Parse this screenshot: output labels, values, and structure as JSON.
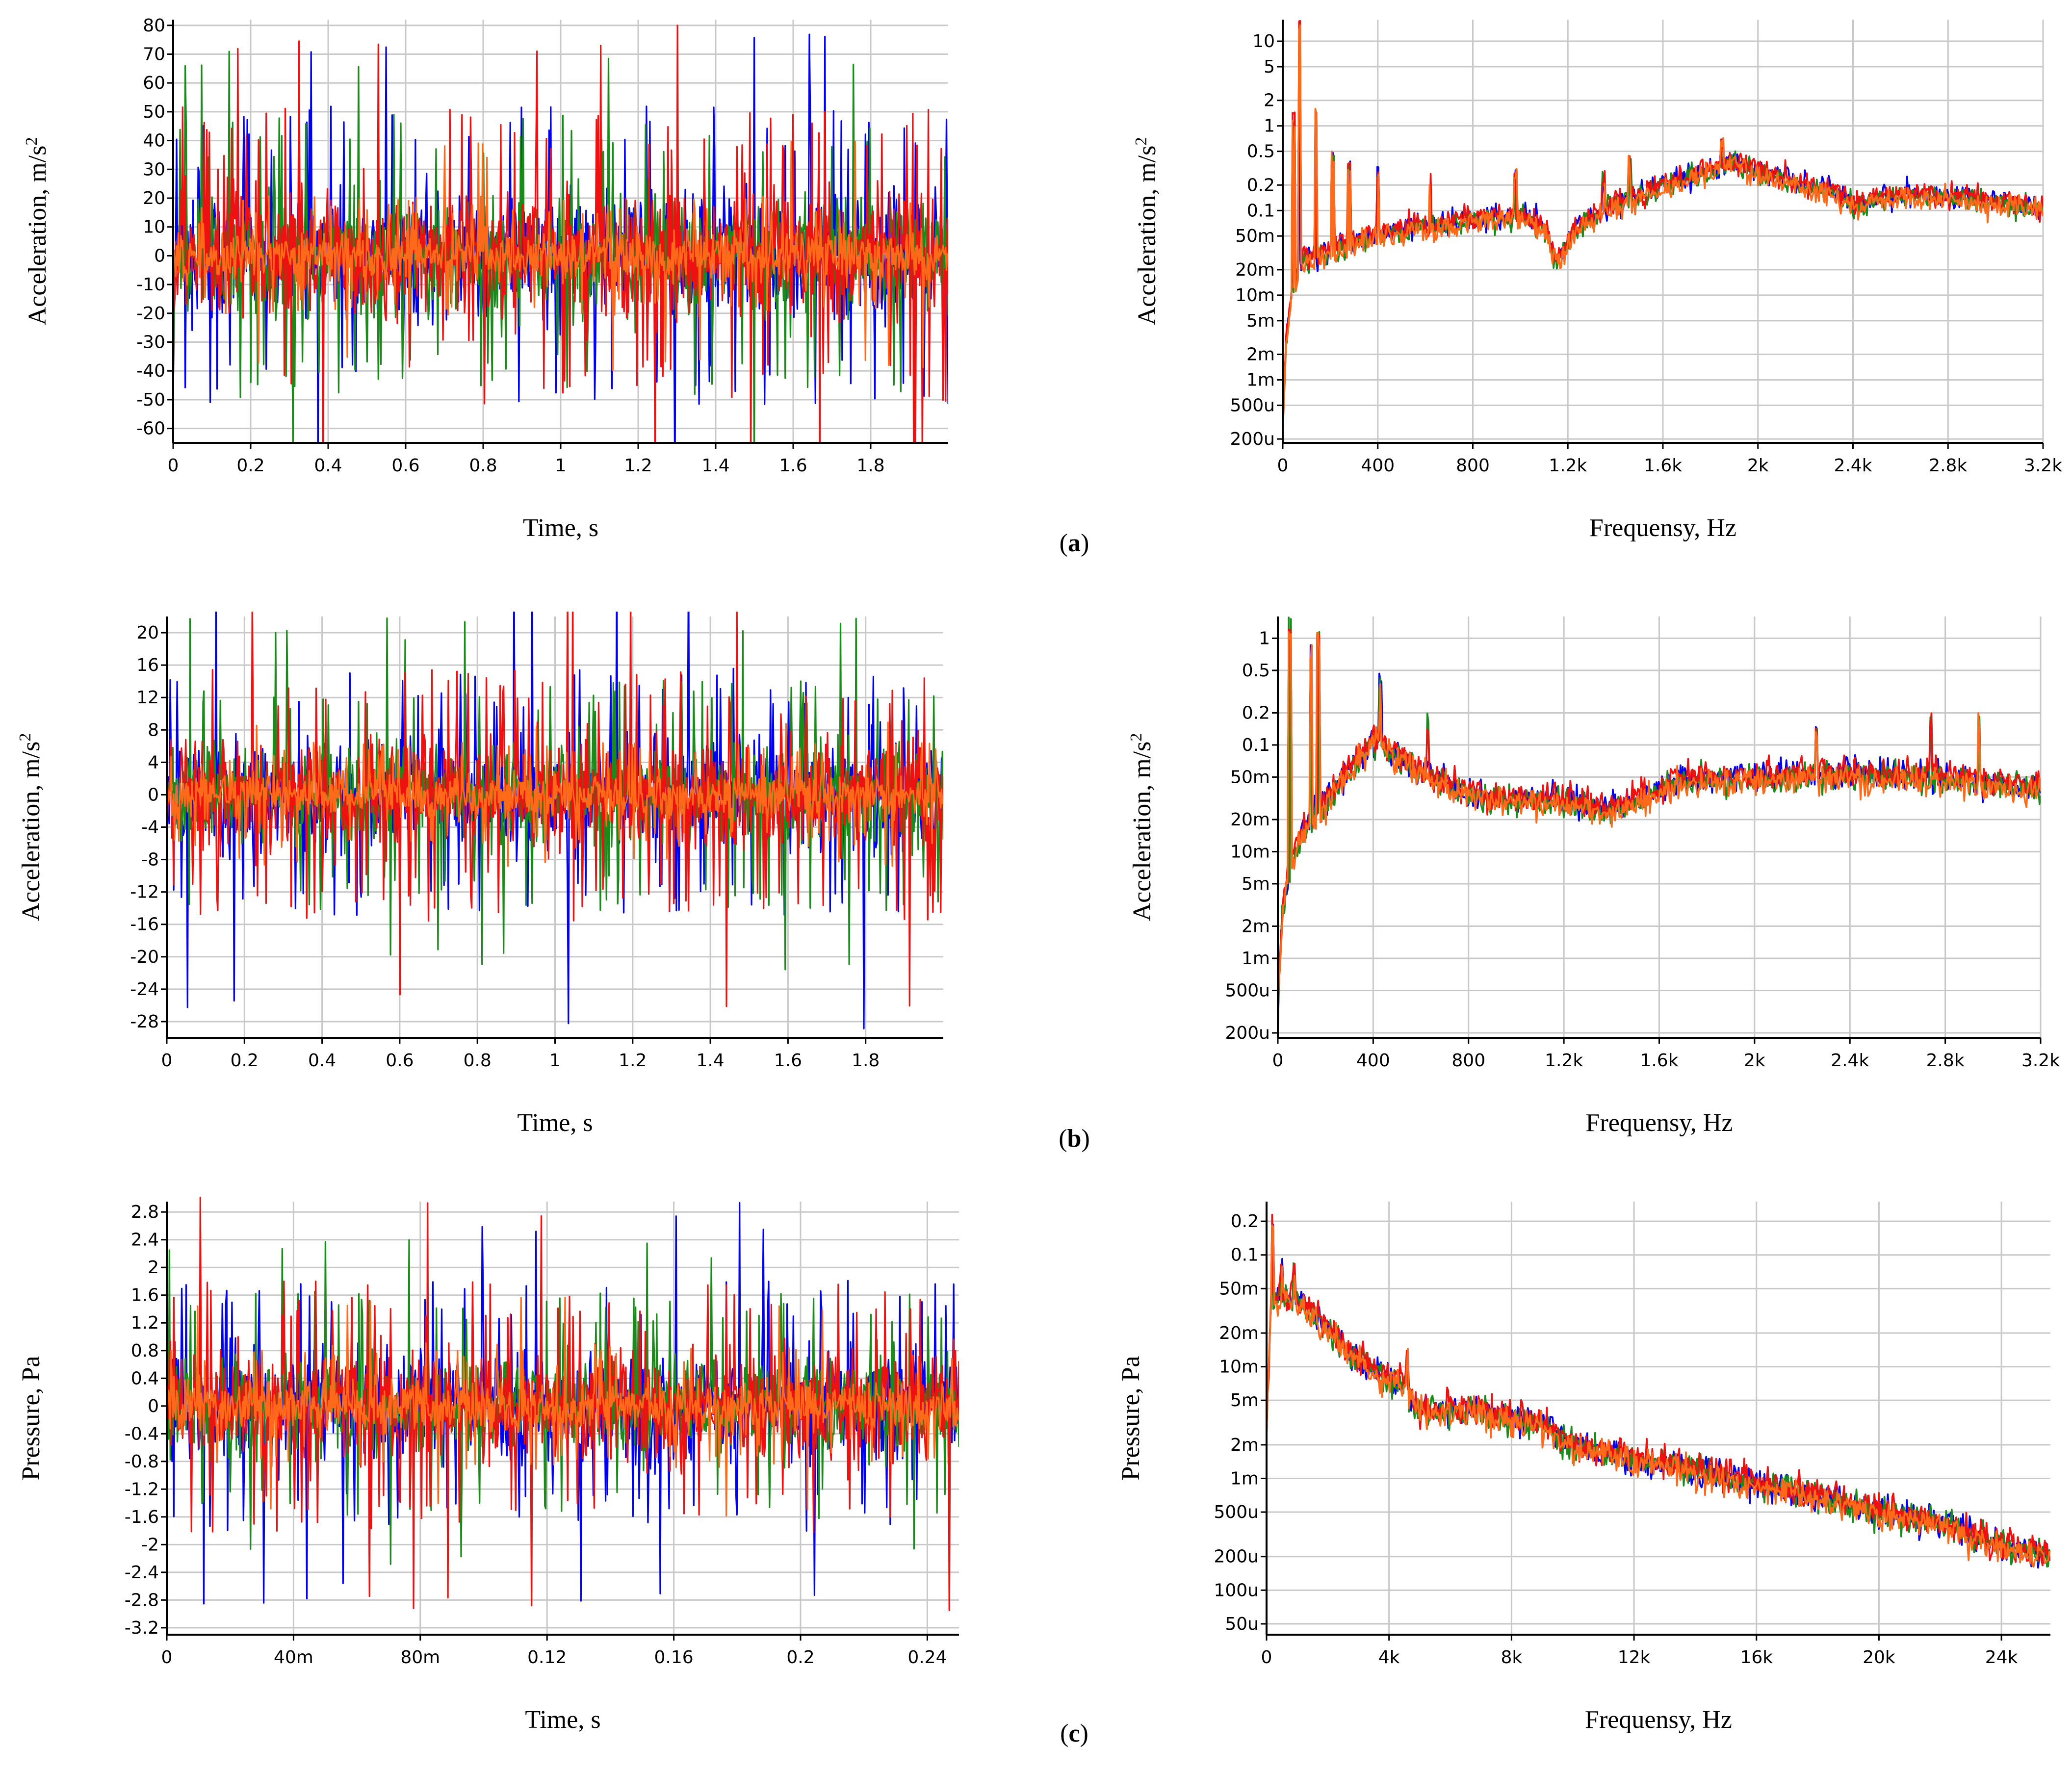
{
  "colors": {
    "blue": "#0000ee",
    "green": "#1a8a1a",
    "red": "#ee1111",
    "orange": "#ff6a1a",
    "grid": "#c8c8c8",
    "axis": "#000000"
  },
  "panels": [
    {
      "label": "(a)",
      "paren_open": "(",
      "letter": "a",
      "paren_close": ")"
    },
    {
      "label": "(b)",
      "paren_open": "(",
      "letter": "b",
      "paren_close": ")"
    },
    {
      "label": "(c)",
      "paren_open": "(",
      "letter": "c",
      "paren_close": ")"
    }
  ],
  "chart_data": [
    {
      "id": "a-time",
      "panel": "(a)",
      "type": "line",
      "xlabel": "Time, s",
      "ylabel": "Acceleration, m/s",
      "ylabel_sup": "2",
      "xlim": [
        0,
        2.0
      ],
      "ylim": [
        -65,
        82
      ],
      "xticks": [
        0,
        0.2,
        0.4,
        0.6,
        0.8,
        1.0,
        1.2,
        1.4,
        1.6,
        1.8
      ],
      "xtick_labels": [
        "0",
        "0.2",
        "0.4",
        "0.6",
        "0.8",
        "1",
        "1.2",
        "1.4",
        "1.6",
        "1.8"
      ],
      "yticks": [
        80,
        70,
        60,
        50,
        40,
        30,
        20,
        10,
        0,
        -10,
        -20,
        -30,
        -40,
        -50,
        -60
      ],
      "ytick_labels": [
        "80",
        "70",
        "60",
        "50",
        "40",
        "30",
        "20",
        "10",
        "0",
        "-10",
        "-20",
        "-30",
        "-40",
        "-50",
        "-60"
      ],
      "grid": true,
      "series": [
        {
          "name": "blue",
          "color": "blue",
          "signal": {
            "kind": "time",
            "amp": 40,
            "peak": 82,
            "seed": 11
          }
        },
        {
          "name": "green",
          "color": "green",
          "signal": {
            "kind": "time",
            "amp": 38,
            "peak": 74,
            "seed": 22
          }
        },
        {
          "name": "red",
          "color": "red",
          "signal": {
            "kind": "time",
            "amp": 40,
            "peak": 80,
            "seed": 33
          }
        },
        {
          "name": "orange",
          "color": "orange",
          "signal": {
            "kind": "time",
            "amp": 16,
            "peak": 40,
            "seed": 44
          }
        }
      ]
    },
    {
      "id": "a-freq",
      "panel": "(a)",
      "type": "line",
      "yscale": "log",
      "xlabel": "Frequensy, Hz",
      "ylabel": "Acceleration, m/s",
      "ylabel_sup": "2",
      "xlim": [
        0,
        3200
      ],
      "ylim": [
        0.00018,
        18
      ],
      "xticks": [
        0,
        400,
        800,
        1200,
        1600,
        2000,
        2400,
        2800,
        3200
      ],
      "xtick_labels": [
        "0",
        "400",
        "800",
        "1.2k",
        "1.6k",
        "2k",
        "2.4k",
        "2.8k",
        "3.2k"
      ],
      "yticks": [
        10,
        5,
        2,
        1,
        0.5,
        0.2,
        0.1,
        0.05,
        0.02,
        0.01,
        0.005,
        0.002,
        0.001,
        0.0005,
        0.0002
      ],
      "ytick_labels": [
        "10",
        "5",
        "2",
        "1",
        "0.5",
        "0.2",
        "0.1",
        "50m",
        "20m",
        "10m",
        "5m",
        "2m",
        "1m",
        "500u",
        "200u"
      ],
      "grid": true,
      "envelope": [
        [
          0,
          0.0003
        ],
        [
          15,
          0.003
        ],
        [
          40,
          0.012
        ],
        [
          80,
          0.025
        ],
        [
          150,
          0.03
        ],
        [
          300,
          0.045
        ],
        [
          500,
          0.06
        ],
        [
          800,
          0.08
        ],
        [
          1000,
          0.09
        ],
        [
          1100,
          0.07
        ],
        [
          1150,
          0.025
        ],
        [
          1250,
          0.07
        ],
        [
          1400,
          0.12
        ],
        [
          1600,
          0.2
        ],
        [
          1800,
          0.3
        ],
        [
          1900,
          0.38
        ],
        [
          2000,
          0.3
        ],
        [
          2200,
          0.2
        ],
        [
          2300,
          0.18
        ],
        [
          2400,
          0.12
        ],
        [
          2600,
          0.16
        ],
        [
          2800,
          0.15
        ],
        [
          3000,
          0.13
        ],
        [
          3200,
          0.11
        ]
      ],
      "peaks": [
        [
          45,
          1.5
        ],
        [
          70,
          18
        ],
        [
          140,
          1.6
        ],
        [
          210,
          0.5
        ],
        [
          280,
          0.4
        ],
        [
          400,
          0.35
        ],
        [
          620,
          0.3
        ],
        [
          980,
          0.35
        ],
        [
          1350,
          0.3
        ],
        [
          1460,
          0.45
        ],
        [
          1850,
          0.8
        ]
      ],
      "series": [
        {
          "name": "blue",
          "color": "blue",
          "signal": {
            "kind": "spectrum",
            "seed": 51,
            "gain": 1.0
          }
        },
        {
          "name": "green",
          "color": "green",
          "signal": {
            "kind": "spectrum",
            "seed": 52,
            "gain": 0.95
          }
        },
        {
          "name": "red",
          "color": "red",
          "signal": {
            "kind": "spectrum",
            "seed": 53,
            "gain": 1.05
          }
        },
        {
          "name": "orange",
          "color": "orange",
          "signal": {
            "kind": "spectrum",
            "seed": 54,
            "gain": 0.9
          }
        }
      ]
    },
    {
      "id": "b-time",
      "panel": "(b)",
      "type": "line",
      "xlabel": "Time, s",
      "ylabel": "Acceleration, m/s",
      "ylabel_sup": "2",
      "xlim": [
        0,
        2.0
      ],
      "ylim": [
        -30,
        22
      ],
      "xticks": [
        0,
        0.2,
        0.4,
        0.6,
        0.8,
        1.0,
        1.2,
        1.4,
        1.6,
        1.8
      ],
      "xtick_labels": [
        "0",
        "0.2",
        "0.4",
        "0.6",
        "0.8",
        "1",
        "1.2",
        "1.4",
        "1.6",
        "1.8"
      ],
      "yticks": [
        20,
        16,
        12,
        8,
        4,
        0,
        -4,
        -8,
        -12,
        -16,
        -20,
        -24,
        -28
      ],
      "ytick_labels": [
        "20",
        "16",
        "12",
        "8",
        "4",
        "0",
        "-4",
        "-8",
        "-12",
        "-16",
        "-20",
        "-24",
        "-28"
      ],
      "grid": true,
      "series": [
        {
          "name": "blue",
          "color": "blue",
          "signal": {
            "kind": "time",
            "amp": 12,
            "peak": 29,
            "seed": 61
          }
        },
        {
          "name": "green",
          "color": "green",
          "signal": {
            "kind": "time",
            "amp": 11,
            "peak": 22,
            "seed": 62
          }
        },
        {
          "name": "red",
          "color": "red",
          "signal": {
            "kind": "time",
            "amp": 12,
            "peak": 27,
            "seed": 63
          }
        },
        {
          "name": "orange",
          "color": "orange",
          "signal": {
            "kind": "time",
            "amp": 5,
            "peak": 9,
            "seed": 64
          }
        }
      ]
    },
    {
      "id": "b-freq",
      "panel": "(b)",
      "type": "line",
      "yscale": "log",
      "xlabel": "Frequensy, Hz",
      "ylabel": "Acceleration, m/s",
      "ylabel_sup": "2",
      "xlim": [
        0,
        3200
      ],
      "ylim": [
        0.00018,
        1.6
      ],
      "xticks": [
        0,
        400,
        800,
        1200,
        1600,
        2000,
        2400,
        2800,
        3200
      ],
      "xtick_labels": [
        "0",
        "400",
        "800",
        "1.2k",
        "1.6k",
        "2k",
        "2.4k",
        "2.8k",
        "3.2k"
      ],
      "yticks": [
        1,
        0.5,
        0.2,
        0.1,
        0.05,
        0.02,
        0.01,
        0.005,
        0.002,
        0.001,
        0.0005,
        0.0002
      ],
      "ytick_labels": [
        "1",
        "0.5",
        "0.2",
        "0.1",
        "50m",
        "20m",
        "10m",
        "5m",
        "2m",
        "1m",
        "500u",
        "200u"
      ],
      "grid": true,
      "envelope": [
        [
          0,
          0.0003
        ],
        [
          15,
          0.002
        ],
        [
          40,
          0.006
        ],
        [
          100,
          0.015
        ],
        [
          200,
          0.03
        ],
        [
          300,
          0.06
        ],
        [
          420,
          0.12
        ],
        [
          500,
          0.08
        ],
        [
          650,
          0.05
        ],
        [
          800,
          0.035
        ],
        [
          1000,
          0.032
        ],
        [
          1200,
          0.03
        ],
        [
          1400,
          0.025
        ],
        [
          1500,
          0.03
        ],
        [
          1700,
          0.05
        ],
        [
          2000,
          0.05
        ],
        [
          2400,
          0.055
        ],
        [
          2800,
          0.05
        ],
        [
          3200,
          0.04
        ]
      ],
      "peaks": [
        [
          50,
          1.6
        ],
        [
          140,
          0.9
        ],
        [
          170,
          1.2
        ],
        [
          430,
          0.5
        ],
        [
          630,
          0.2
        ],
        [
          2260,
          0.15
        ],
        [
          2740,
          0.2
        ],
        [
          2940,
          0.2
        ]
      ],
      "series": [
        {
          "name": "blue",
          "color": "blue",
          "signal": {
            "kind": "spectrum",
            "seed": 71,
            "gain": 1.0
          }
        },
        {
          "name": "green",
          "color": "green",
          "signal": {
            "kind": "spectrum",
            "seed": 72,
            "gain": 0.95
          }
        },
        {
          "name": "red",
          "color": "red",
          "signal": {
            "kind": "spectrum",
            "seed": 73,
            "gain": 1.05
          }
        },
        {
          "name": "orange",
          "color": "orange",
          "signal": {
            "kind": "spectrum",
            "seed": 74,
            "gain": 0.9
          }
        }
      ]
    },
    {
      "id": "c-time",
      "panel": "(c)",
      "type": "line",
      "xlabel": "Time, s",
      "ylabel": "Pressure, Pa",
      "ylabel_sup": "",
      "xlim": [
        0,
        0.25
      ],
      "ylim": [
        -3.3,
        2.95
      ],
      "xticks": [
        0,
        0.04,
        0.08,
        0.12,
        0.16,
        0.2,
        0.24
      ],
      "xtick_labels": [
        "0",
        "40m",
        "80m",
        "0.12",
        "0.16",
        "0.2",
        "0.24"
      ],
      "yticks": [
        2.8,
        2.4,
        2.0,
        1.6,
        1.2,
        0.8,
        0.4,
        0,
        -0.4,
        -0.8,
        -1.2,
        -1.6,
        -2.0,
        -2.4,
        -2.8,
        -3.2
      ],
      "ytick_labels": [
        "2.8",
        "2.4",
        "2",
        "1.6",
        "1.2",
        "0.8",
        "0.4",
        "0",
        "-0.4",
        "-0.8",
        "-1.2",
        "-1.6",
        "-2",
        "-2.4",
        "-2.8",
        "-3.2"
      ],
      "grid": true,
      "series": [
        {
          "name": "blue",
          "color": "blue",
          "signal": {
            "kind": "time",
            "amp": 1.4,
            "peak": 2.95,
            "seed": 81
          }
        },
        {
          "name": "green",
          "color": "green",
          "signal": {
            "kind": "time",
            "amp": 1.3,
            "peak": 2.4,
            "seed": 82
          }
        },
        {
          "name": "red",
          "color": "red",
          "signal": {
            "kind": "time",
            "amp": 1.4,
            "peak": 3.2,
            "seed": 83
          }
        },
        {
          "name": "orange",
          "color": "orange",
          "signal": {
            "kind": "time",
            "amp": 0.7,
            "peak": 1.6,
            "seed": 84
          }
        }
      ]
    },
    {
      "id": "c-freq",
      "panel": "(c)",
      "type": "line",
      "yscale": "log",
      "xlabel": "Frequensy, Hz",
      "ylabel": "Pressure, Pa",
      "ylabel_sup": "",
      "xlim": [
        0,
        25600
      ],
      "ylim": [
        4e-05,
        0.3
      ],
      "xticks": [
        0,
        4000,
        8000,
        12000,
        16000,
        20000,
        24000
      ],
      "xtick_labels": [
        "0",
        "4k",
        "8k",
        "12k",
        "16k",
        "20k",
        "24k"
      ],
      "yticks": [
        0.2,
        0.1,
        0.05,
        0.02,
        0.01,
        0.005,
        0.002,
        0.001,
        0.0005,
        0.0002,
        0.0001,
        5e-05
      ],
      "ytick_labels": [
        "0.2",
        "0.1",
        "50m",
        "20m",
        "10m",
        "5m",
        "2m",
        "1m",
        "500u",
        "200u",
        "100u",
        "50u"
      ],
      "grid": true,
      "envelope": [
        [
          0,
          0.003
        ],
        [
          150,
          0.04
        ],
        [
          600,
          0.045
        ],
        [
          1500,
          0.03
        ],
        [
          2500,
          0.015
        ],
        [
          3500,
          0.009
        ],
        [
          4500,
          0.007
        ],
        [
          5000,
          0.004
        ],
        [
          7000,
          0.004
        ],
        [
          9000,
          0.003
        ],
        [
          10000,
          0.002
        ],
        [
          12000,
          0.0015
        ],
        [
          14000,
          0.0012
        ],
        [
          16000,
          0.0009
        ],
        [
          18000,
          0.0007
        ],
        [
          20000,
          0.0005
        ],
        [
          22000,
          0.0004
        ],
        [
          24000,
          0.00025
        ],
        [
          25600,
          0.0002
        ]
      ],
      "peaks": [
        [
          200,
          0.25
        ],
        [
          500,
          0.1
        ],
        [
          900,
          0.09
        ],
        [
          4600,
          0.015
        ]
      ],
      "series": [
        {
          "name": "blue",
          "color": "blue",
          "signal": {
            "kind": "spectrum",
            "seed": 91,
            "gain": 1.0
          }
        },
        {
          "name": "green",
          "color": "green",
          "signal": {
            "kind": "spectrum",
            "seed": 92,
            "gain": 1.0
          }
        },
        {
          "name": "red",
          "color": "red",
          "signal": {
            "kind": "spectrum",
            "seed": 93,
            "gain": 1.05
          }
        },
        {
          "name": "orange",
          "color": "orange",
          "signal": {
            "kind": "spectrum",
            "seed": 94,
            "gain": 0.95
          }
        }
      ]
    }
  ]
}
